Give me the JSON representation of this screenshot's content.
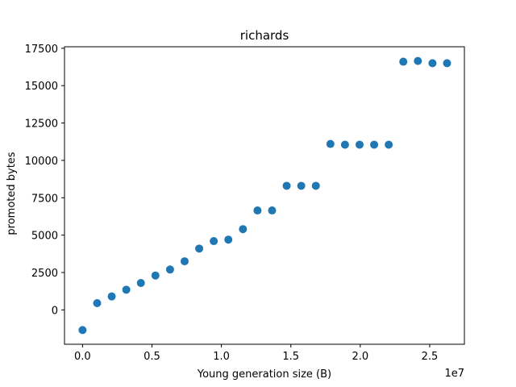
{
  "chart_data": {
    "type": "scatter",
    "title": "richards",
    "xlabel": "Young generation size (B)",
    "ylabel": "promoted bytes",
    "x_offset_label": "1e7",
    "xlim": [
      -0.13,
      2.75
    ],
    "ylim": [
      -2300,
      17600
    ],
    "x_unit_multiplier": 10000000,
    "xticks": [
      0.0,
      0.5,
      1.0,
      1.5,
      2.0,
      2.5
    ],
    "xtick_labels": [
      "0.0",
      "0.5",
      "1.0",
      "1.5",
      "2.0",
      "2.5"
    ],
    "yticks": [
      0,
      2500,
      5000,
      7500,
      10000,
      12500,
      15000,
      17500
    ],
    "ytick_labels": [
      "0",
      "2500",
      "5000",
      "7500",
      "10000",
      "12500",
      "15000",
      "17500"
    ],
    "grid": false,
    "legend": "none",
    "marker_color": "#1f77b4",
    "series": [
      {
        "x": [
          0.0,
          0.105,
          0.21,
          0.315,
          0.42,
          0.525,
          0.63,
          0.735,
          0.84,
          0.945,
          1.05,
          1.155,
          1.26,
          1.365,
          1.47,
          1.575,
          1.68,
          1.785,
          1.89,
          1.995,
          2.1,
          2.205,
          2.31,
          2.415,
          2.52,
          2.625
        ],
        "y": [
          -1350,
          450,
          900,
          1350,
          1800,
          2300,
          2700,
          3250,
          4100,
          4600,
          4700,
          5400,
          6650,
          6650,
          8300,
          8300,
          8300,
          11100,
          11050,
          11050,
          11050,
          11050,
          16600,
          16650,
          16500,
          16500
        ]
      }
    ]
  }
}
